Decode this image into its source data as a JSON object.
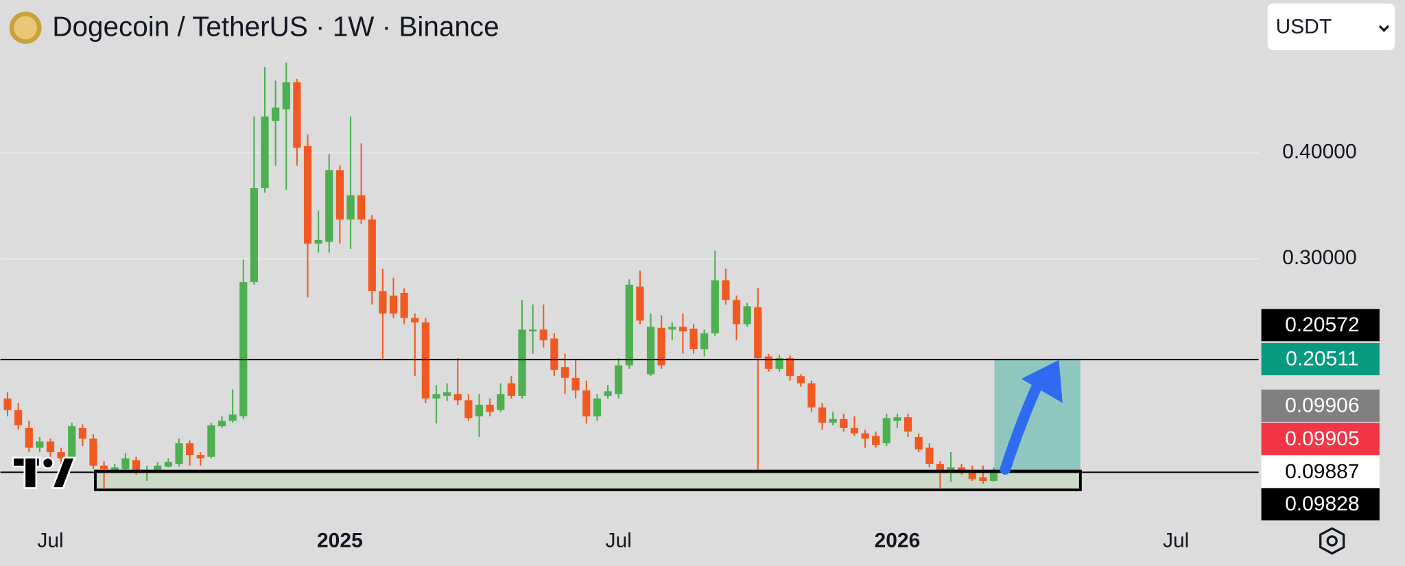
{
  "chart_data": {
    "type": "candlestick",
    "title": "Dogecoin / TetherUS · 1W · Binance",
    "currency_selector": "USDT",
    "categories": [
      null,
      null,
      null,
      null,
      "Jul",
      null,
      null,
      null,
      null,
      null,
      null,
      null,
      null,
      null,
      null,
      null,
      null,
      null,
      null,
      null,
      null,
      null,
      null,
      null,
      null,
      null,
      null,
      null,
      null,
      null,
      null,
      "2025",
      null,
      null,
      null,
      null,
      null,
      null,
      null,
      null,
      null,
      null,
      null,
      null,
      null,
      null,
      null,
      null,
      null,
      null,
      null,
      null,
      null,
      null,
      null,
      null,
      null,
      "Jul",
      null,
      null,
      null,
      null,
      null,
      null,
      null,
      null,
      null,
      null,
      null,
      null,
      null,
      null,
      null,
      null,
      null,
      null,
      null,
      null,
      null,
      null,
      null,
      null,
      null,
      "2026",
      null,
      null,
      null,
      null,
      null,
      null,
      null,
      null,
      null,
      null,
      null,
      null,
      null,
      null,
      null,
      null,
      null,
      null,
      null,
      null,
      null,
      null,
      null,
      null,
      null,
      "Jul",
      null,
      null,
      null,
      null,
      null,
      null,
      null
    ],
    "open": [
      0.1684,
      0.1575,
      0.1406,
      0.122,
      0.1279,
      0.1178,
      0.1135,
      0.1406,
      0.1305,
      0.1051,
      0.1009,
      0.1017,
      0.1102,
      0.0983,
      0.1009,
      0.1042,
      0.1068,
      0.1262,
      0.1152,
      0.1135,
      0.1423,
      0.1473,
      0.1516,
      0.2781,
      0.3667,
      0.4299,
      0.4409,
      0.4663,
      0.4063,
      0.3143,
      0.316,
      0.3835,
      0.3371,
      0.3599,
      0.3371,
      0.2696,
      0.2654,
      0.2679,
      0.2443,
      0.2401,
      0.1684,
      0.1709,
      0.1726,
      0.1667,
      0.1516,
      0.1625,
      0.1575,
      0.1827,
      0.1709,
      0.2316,
      0.2333,
      0.2249,
      0.1979,
      0.1878,
      0.176,
      0.1516,
      0.1709,
      0.1726,
      0.1996,
      0.2739,
      0.1912,
      0.235,
      0.2333,
      0.2359,
      0.2342,
      0.2148,
      0.2299,
      0.2798,
      0.2612,
      0.2384,
      0.2544,
      0.208,
      0.1962,
      0.2064,
      0.1895,
      0.1827,
      0.16,
      0.1456,
      0.149,
      0.1406,
      0.1355,
      0.133,
      0.1262,
      0.1473,
      0.1507,
      0.1321,
      0.122,
      0.1068,
      0.0992,
      0.1034,
      0.0983,
      0.0941,
      0.0907,
      null,
      null,
      null,
      null,
      null,
      null,
      null,
      null,
      null,
      null,
      null,
      null,
      null,
      null,
      null,
      null,
      null,
      null,
      null,
      null,
      null,
      null,
      null,
      null
    ],
    "high": [
      0.1743,
      0.1642,
      0.1473,
      0.1321,
      0.1305,
      0.122,
      0.1456,
      0.144,
      0.1347,
      0.1093,
      0.1068,
      0.1169,
      0.1135,
      0.1051,
      0.1085,
      0.1119,
      0.1305,
      0.1288,
      0.1178,
      0.1456,
      0.1516,
      0.1769,
      0.2992,
      0.4342,
      0.4806,
      0.4679,
      0.4848,
      0.4696,
      0.4173,
      0.3456,
      0.3987,
      0.3878,
      0.4342,
      0.4088,
      0.3413,
      0.2907,
      0.2823,
      0.2722,
      0.2485,
      0.2443,
      0.1811,
      0.1827,
      0.2064,
      0.1726,
      0.1726,
      0.1684,
      0.1827,
      0.1895,
      0.2612,
      0.257,
      0.257,
      0.2299,
      0.2105,
      0.2047,
      0.1853,
      0.1726,
      0.1811,
      0.2064,
      0.2806,
      0.289,
      0.2485,
      0.2468,
      0.2401,
      0.2485,
      0.2384,
      0.2333,
      0.3076,
      0.2907,
      0.2654,
      0.2586,
      0.2722,
      0.2105,
      0.2097,
      0.2088,
      0.1912,
      0.1853,
      0.1642,
      0.1558,
      0.1541,
      0.1516,
      0.1389,
      0.1372,
      0.1541,
      0.1541,
      0.1541,
      0.1355,
      0.1262,
      0.1093,
      0.1178,
      0.1068,
      0.1051,
      0.1051,
      0.1034,
      null,
      null,
      null,
      null,
      null,
      null,
      null,
      null,
      null,
      null,
      null,
      null,
      null,
      null,
      null,
      null,
      null,
      null,
      null,
      null,
      null,
      null,
      null,
      null
    ],
    "low": [
      0.1516,
      0.1389,
      0.1178,
      0.1178,
      0.1135,
      0.1068,
      0.1119,
      0.1237,
      0.1017,
      0.084,
      0.0983,
      0.0992,
      0.0967,
      0.0907,
      0.0983,
      0.1034,
      0.1042,
      0.1051,
      0.1051,
      0.1119,
      0.1406,
      0.1456,
      0.149,
      0.2756,
      0.3624,
      0.3878,
      0.365,
      0.3878,
      0.2637,
      0.3059,
      0.3059,
      0.3143,
      0.3092,
      0.3329,
      0.257,
      0.2047,
      0.2443,
      0.2384,
      0.1895,
      0.1642,
      0.1448,
      0.1659,
      0.1625,
      0.1473,
      0.1321,
      0.1516,
      0.1558,
      0.1684,
      0.1684,
      0.2105,
      0.2164,
      0.1895,
      0.1726,
      0.1684,
      0.1448,
      0.1473,
      0.1684,
      0.1684,
      0.1962,
      0.2384,
      0.1895,
      0.1962,
      0.2232,
      0.2105,
      0.2105,
      0.208,
      0.2274,
      0.257,
      0.2232,
      0.2359,
      0.0983,
      0.1937,
      0.1937,
      0.1853,
      0.1794,
      0.1558,
      0.1389,
      0.1431,
      0.1372,
      0.133,
      0.122,
      0.122,
      0.1237,
      0.1406,
      0.1321,
      0.1178,
      0.1034,
      0.084,
      0.0899,
      0.0967,
      0.0907,
      0.0882,
      0.0899,
      null,
      null,
      null,
      null,
      null,
      null,
      null,
      null,
      null,
      null,
      null,
      null,
      null,
      null,
      null,
      null,
      null,
      null,
      null,
      null,
      null,
      null,
      null,
      null
    ],
    "close": [
      0.1575,
      0.1431,
      0.122,
      0.1279,
      0.1178,
      0.1119,
      0.1423,
      0.1305,
      0.1051,
      0.1017,
      0.1034,
      0.1119,
      0.0983,
      0.1009,
      0.1051,
      0.1085,
      0.1262,
      0.1152,
      0.1119,
      0.1431,
      0.1473,
      0.1532,
      0.2781,
      0.3667,
      0.4342,
      0.4426,
      0.4663,
      0.4046,
      0.3143,
      0.3177,
      0.3835,
      0.3371,
      0.3599,
      0.3371,
      0.2696,
      0.2485,
      0.2485,
      0.2443,
      0.2401,
      0.1684,
      0.1726,
      0.1743,
      0.1667,
      0.1499,
      0.1625,
      0.1558,
      0.1726,
      0.1709,
      0.2333,
      0.2333,
      0.2232,
      0.1954,
      0.1878,
      0.176,
      0.1516,
      0.1684,
      0.1752,
      0.1996,
      0.2756,
      0.2418,
      0.2359,
      0.1996,
      0.2359,
      0.2316,
      0.2148,
      0.2299,
      0.2798,
      0.2612,
      0.2384,
      0.2553,
      0.2064,
      0.1962,
      0.2064,
      0.1895,
      0.1827,
      0.16,
      0.1456,
      0.149,
      0.1406,
      0.1355,
      0.1305,
      0.1245,
      0.1499,
      0.1507,
      0.1372,
      0.1203,
      0.1068,
      0.1009,
      0.1034,
      0.0992,
      0.0924,
      0.0907,
      0.0991,
      null,
      null,
      null,
      null,
      null,
      null,
      null,
      null,
      null,
      null,
      null,
      null,
      null,
      null,
      null,
      null,
      null,
      null,
      null,
      null,
      null,
      null,
      null,
      null
    ],
    "up_color": "#4caf50",
    "down_color": "#f05a22",
    "ylim": [
      0.0502,
      0.5439
    ],
    "yticks": [
      {
        "value": 0.3,
        "label": "0.30000"
      },
      {
        "value": 0.4,
        "label": "0.40000"
      }
    ],
    "grid": true,
    "horizontal_lines": [
      0.20511,
      0.09887
    ],
    "price_tags": [
      {
        "label": "0.20572",
        "bg": "#000000",
        "fg": "#ffffff"
      },
      {
        "label": "0.20511",
        "bg": "#089981",
        "fg": "#ffffff"
      },
      {
        "label": "0.09906",
        "bg": "#808080",
        "fg": "#ffffff"
      },
      {
        "label": "0.09905",
        "bg": "#f23645",
        "fg": "#ffffff"
      },
      {
        "label": "0.09887",
        "bg": "#ffffff",
        "fg": "#000000"
      },
      {
        "label": "0.09828",
        "bg": "#000000",
        "fg": "#ffffff"
      }
    ]
  }
}
